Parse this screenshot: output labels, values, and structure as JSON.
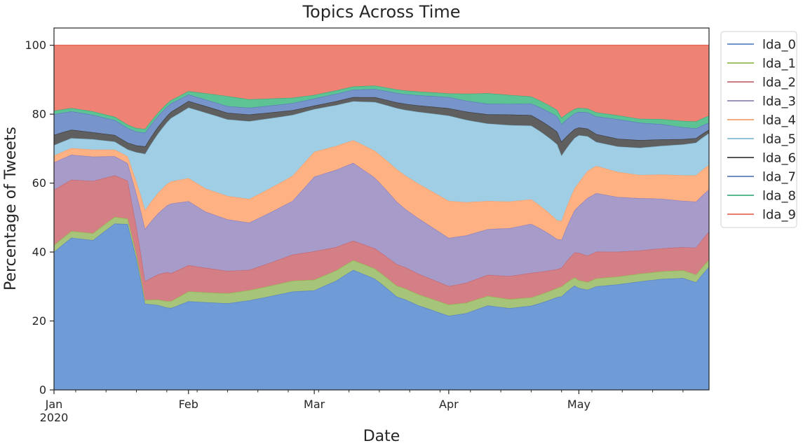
{
  "chart_data": {
    "type": "area",
    "stacked": true,
    "title": "Topics Across Time",
    "xlabel": "Date",
    "ylabel": "Percentage of Tweets",
    "x_start": "2020-01-01",
    "x_end": "2020-05-31",
    "ylim": [
      0,
      105
    ],
    "yticks": [
      0,
      20,
      40,
      60,
      80,
      100
    ],
    "xticks": [
      {
        "date": "2020-01-01",
        "label": "Jan",
        "sublabel": "2020"
      },
      {
        "date": "2020-02-01",
        "label": "Feb",
        "sublabel": ""
      },
      {
        "date": "2020-03-01",
        "label": "Mar",
        "sublabel": ""
      },
      {
        "date": "2020-04-01",
        "label": "Apr",
        "sublabel": ""
      },
      {
        "date": "2020-05-01",
        "label": "May",
        "sublabel": ""
      }
    ],
    "grid": false,
    "legend_position": "outside-top-right",
    "series": [
      {
        "name": "lda_0",
        "color": "#6f9bd6",
        "line": "#5b84c4",
        "knots": [
          [
            "2020-01-01",
            40
          ],
          [
            "2020-01-05",
            46
          ],
          [
            "2020-01-10",
            43
          ],
          [
            "2020-01-15",
            50
          ],
          [
            "2020-01-18",
            48
          ],
          [
            "2020-01-20",
            38
          ],
          [
            "2020-01-22",
            23
          ],
          [
            "2020-01-25",
            25
          ],
          [
            "2020-02-01",
            27
          ],
          [
            "2020-02-10",
            26
          ],
          [
            "2020-02-20",
            27
          ],
          [
            "2020-03-01",
            28
          ],
          [
            "2020-03-06",
            32
          ],
          [
            "2020-03-10",
            37
          ],
          [
            "2020-03-15",
            33
          ],
          [
            "2020-03-20",
            26
          ],
          [
            "2020-03-25",
            23
          ],
          [
            "2020-04-01",
            20
          ],
          [
            "2020-04-05",
            21
          ],
          [
            "2020-04-10",
            24
          ],
          [
            "2020-04-15",
            23
          ],
          [
            "2020-04-20",
            24
          ],
          [
            "2020-04-26",
            22
          ],
          [
            "2020-04-27",
            20
          ],
          [
            "2020-04-30",
            26
          ],
          [
            "2020-05-05",
            26
          ],
          [
            "2020-05-10",
            27
          ],
          [
            "2020-05-15",
            28
          ],
          [
            "2020-05-20",
            29
          ],
          [
            "2020-05-25",
            29
          ],
          [
            "2020-05-28",
            28
          ],
          [
            "2020-05-31",
            35
          ]
        ]
      },
      {
        "name": "lda_1",
        "color": "#a6c47a",
        "line": "#94b94f",
        "knots": [
          [
            "2020-01-01",
            2
          ],
          [
            "2020-01-15",
            2
          ],
          [
            "2020-01-22",
            1
          ],
          [
            "2020-02-01",
            3
          ],
          [
            "2020-03-01",
            3
          ],
          [
            "2020-04-01",
            3
          ],
          [
            "2020-05-01",
            2
          ],
          [
            "2020-05-31",
            2
          ]
        ]
      },
      {
        "name": "lda_2",
        "color": "#d47f85",
        "line": "#c56972",
        "knots": [
          [
            "2020-01-01",
            16
          ],
          [
            "2020-01-10",
            15
          ],
          [
            "2020-01-18",
            11
          ],
          [
            "2020-01-22",
            5
          ],
          [
            "2020-01-27",
            9
          ],
          [
            "2020-02-01",
            8
          ],
          [
            "2020-02-15",
            6
          ],
          [
            "2020-03-01",
            8
          ],
          [
            "2020-03-10",
            6
          ],
          [
            "2020-03-20",
            6
          ],
          [
            "2020-04-01",
            5
          ],
          [
            "2020-04-10",
            6
          ],
          [
            "2020-04-20",
            7
          ],
          [
            "2020-04-27",
            4
          ],
          [
            "2020-05-01",
            7
          ],
          [
            "2020-05-15",
            6
          ],
          [
            "2020-05-25",
            6
          ],
          [
            "2020-05-31",
            8
          ]
        ]
      },
      {
        "name": "lda_3",
        "color": "#a79bc9",
        "line": "#9082bd",
        "knots": [
          [
            "2020-01-01",
            8
          ],
          [
            "2020-01-10",
            7
          ],
          [
            "2020-01-18",
            5
          ],
          [
            "2020-01-22",
            14
          ],
          [
            "2020-01-28",
            22
          ],
          [
            "2020-02-05",
            17
          ],
          [
            "2020-02-15",
            14
          ],
          [
            "2020-02-25",
            15
          ],
          [
            "2020-03-01",
            21
          ],
          [
            "2020-03-10",
            24
          ],
          [
            "2020-03-15",
            21
          ],
          [
            "2020-03-22",
            16
          ],
          [
            "2020-04-01",
            13
          ],
          [
            "2020-04-10",
            13
          ],
          [
            "2020-04-20",
            14
          ],
          [
            "2020-04-27",
            6
          ],
          [
            "2020-05-03",
            15
          ],
          [
            "2020-05-10",
            14
          ],
          [
            "2020-05-20",
            13
          ],
          [
            "2020-05-25",
            12
          ],
          [
            "2020-05-31",
            12
          ]
        ]
      },
      {
        "name": "lda_4",
        "color": "#feb182",
        "line": "#f5a16f",
        "knots": [
          [
            "2020-01-01",
            2
          ],
          [
            "2020-01-10",
            2
          ],
          [
            "2020-01-18",
            2
          ],
          [
            "2020-01-22",
            5
          ],
          [
            "2020-01-28",
            7
          ],
          [
            "2020-02-05",
            7
          ],
          [
            "2020-02-15",
            7
          ],
          [
            "2020-02-25",
            7
          ],
          [
            "2020-03-01",
            7
          ],
          [
            "2020-03-10",
            7
          ],
          [
            "2020-03-20",
            9
          ],
          [
            "2020-04-01",
            10
          ],
          [
            "2020-04-10",
            8
          ],
          [
            "2020-04-20",
            7
          ],
          [
            "2020-04-27",
            4
          ],
          [
            "2020-05-03",
            7
          ],
          [
            "2020-05-15",
            6
          ],
          [
            "2020-05-31",
            7
          ]
        ]
      },
      {
        "name": "lda_5",
        "color": "#a0cfe5",
        "line": "#86bcd6",
        "knots": [
          [
            "2020-01-01",
            3
          ],
          [
            "2020-01-10",
            3
          ],
          [
            "2020-01-18",
            2
          ],
          [
            "2020-01-22",
            15
          ],
          [
            "2020-01-28",
            20
          ],
          [
            "2020-02-05",
            23
          ],
          [
            "2020-02-15",
            23
          ],
          [
            "2020-02-25",
            17
          ],
          [
            "2020-03-01",
            12
          ],
          [
            "2020-03-10",
            12
          ],
          [
            "2020-03-20",
            17
          ],
          [
            "2020-04-01",
            23
          ],
          [
            "2020-04-10",
            22
          ],
          [
            "2020-04-20",
            21
          ],
          [
            "2020-04-26",
            18
          ],
          [
            "2020-04-27",
            14
          ],
          [
            "2020-05-01",
            12
          ],
          [
            "2020-05-05",
            6
          ],
          [
            "2020-05-15",
            7
          ],
          [
            "2020-05-25",
            8
          ],
          [
            "2020-05-31",
            9
          ]
        ]
      },
      {
        "name": "lda_6",
        "color": "#5f5f5f",
        "line": "#3d3d3d",
        "knots": [
          [
            "2020-01-01",
            3
          ],
          [
            "2020-01-10",
            2
          ],
          [
            "2020-01-20",
            2
          ],
          [
            "2020-02-01",
            2
          ],
          [
            "2020-02-15",
            2
          ],
          [
            "2020-03-01",
            1
          ],
          [
            "2020-04-01",
            2
          ],
          [
            "2020-04-15",
            3
          ],
          [
            "2020-04-27",
            3
          ],
          [
            "2020-05-01",
            2
          ],
          [
            "2020-05-15",
            2
          ],
          [
            "2020-05-31",
            1
          ]
        ]
      },
      {
        "name": "lda_7",
        "color": "#7794cb",
        "line": "#5d7dbb",
        "knots": [
          [
            "2020-01-01",
            6
          ],
          [
            "2020-01-10",
            5
          ],
          [
            "2020-01-20",
            4
          ],
          [
            "2020-02-01",
            2
          ],
          [
            "2020-02-15",
            2
          ],
          [
            "2020-03-01",
            2
          ],
          [
            "2020-04-01",
            3
          ],
          [
            "2020-04-15",
            3
          ],
          [
            "2020-05-01",
            4
          ],
          [
            "2020-05-10",
            5
          ],
          [
            "2020-05-20",
            4
          ],
          [
            "2020-05-31",
            2
          ]
        ]
      },
      {
        "name": "lda_8",
        "color": "#5ec394",
        "line": "#3eae7c",
        "knots": [
          [
            "2020-01-01",
            1
          ],
          [
            "2020-01-20",
            1
          ],
          [
            "2020-02-01",
            1
          ],
          [
            "2020-02-10",
            3
          ],
          [
            "2020-02-20",
            2
          ],
          [
            "2020-03-01",
            1
          ],
          [
            "2020-04-01",
            1
          ],
          [
            "2020-04-10",
            3
          ],
          [
            "2020-04-20",
            2
          ],
          [
            "2020-05-01",
            1
          ],
          [
            "2020-05-15",
            1
          ],
          [
            "2020-05-31",
            2
          ]
        ]
      },
      {
        "name": "lda_9",
        "color": "#ee8274",
        "line": "#e86a5b",
        "knots": [
          [
            "2020-01-01",
            19
          ],
          [
            "2020-01-10",
            19
          ],
          [
            "2020-01-20",
            24
          ],
          [
            "2020-02-01",
            14
          ],
          [
            "2020-02-15",
            16
          ],
          [
            "2020-03-01",
            14
          ],
          [
            "2020-03-15",
            12
          ],
          [
            "2020-04-01",
            13
          ],
          [
            "2020-04-15",
            14
          ],
          [
            "2020-05-01",
            16
          ],
          [
            "2020-05-15",
            19
          ],
          [
            "2020-05-31",
            20
          ]
        ]
      }
    ]
  }
}
